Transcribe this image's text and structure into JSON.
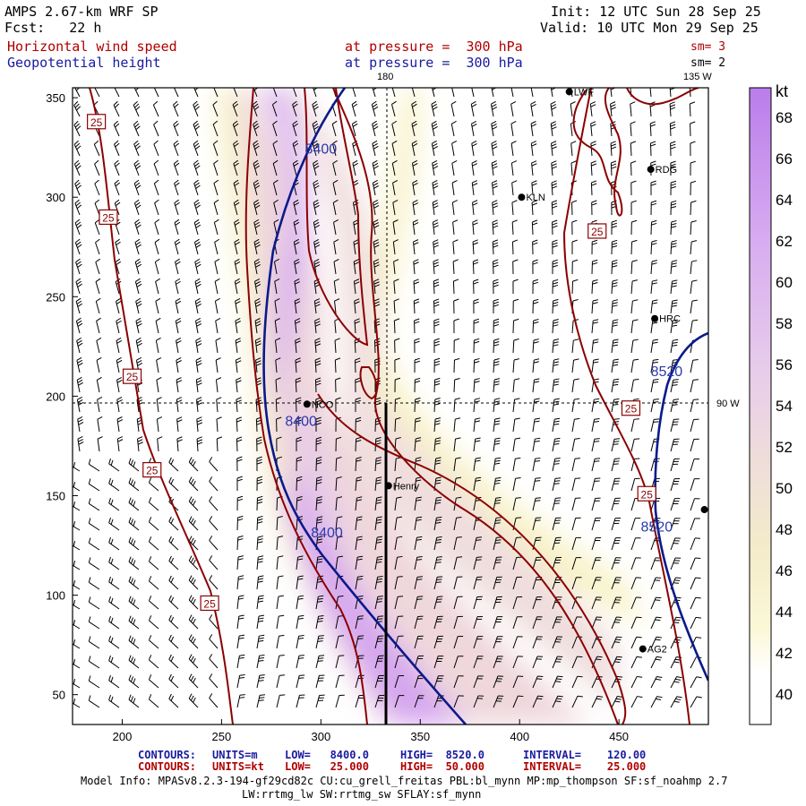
{
  "header": {
    "model": "AMPS 2.67-km WRF SP",
    "forecast": "Fcst:   22 h",
    "init": "Init: 12 UTC Sun 28 Sep 25",
    "valid": "Valid: 10 UTC Mon 29 Sep 25",
    "field1_name": "Horizontal wind speed",
    "field1_level": "at pressure =  300 hPa",
    "field1_sm": "sm= 3",
    "field2_name": "Geopotential height",
    "field2_level": "at pressure =  300 hPa",
    "field2_sm": "sm= 2"
  },
  "map": {
    "meridian_180": "180",
    "meridian_135w": "135 W",
    "meridian_90w": "90 W",
    "x_ticks": [
      200,
      250,
      300,
      350,
      400,
      450
    ],
    "y_ticks": [
      50,
      100,
      150,
      200,
      250,
      300,
      350
    ],
    "x_range": [
      175,
      495
    ],
    "y_range": [
      35,
      355
    ],
    "stations": [
      {
        "id": "LWF",
        "label": "LWF",
        "x": 425,
        "y": 353
      },
      {
        "id": "RDG",
        "label": "RDG",
        "x": 466,
        "y": 314
      },
      {
        "id": "KLN",
        "label": "KLN",
        "x": 401,
        "y": 300
      },
      {
        "id": "HRC",
        "label": "HRC",
        "x": 468,
        "y": 239
      },
      {
        "id": "NCO",
        "label": "NCO",
        "x": 293,
        "y": 196
      },
      {
        "id": "Henry",
        "label": "Henry",
        "x": 334,
        "y": 155
      },
      {
        "id": "AG2",
        "label": "AG2",
        "x": 462,
        "y": 73
      },
      {
        "id": "edge",
        "label": "",
        "x": 493,
        "y": 143
      }
    ],
    "height_contour_labels": [
      {
        "text": "8400",
        "x": 300,
        "y": 322
      },
      {
        "text": "8400",
        "x": 290,
        "y": 185
      },
      {
        "text": "8400",
        "x": 303,
        "y": 129
      },
      {
        "text": "8520",
        "x": 474,
        "y": 210
      },
      {
        "text": "8520",
        "x": 469,
        "y": 132
      }
    ],
    "wind_contour_labels": [
      {
        "text": "25",
        "x": 187,
        "y": 338
      },
      {
        "text": "25",
        "x": 193,
        "y": 290
      },
      {
        "text": "25",
        "x": 205,
        "y": 210
      },
      {
        "text": "25",
        "x": 215,
        "y": 163
      },
      {
        "text": "25",
        "x": 244,
        "y": 96
      },
      {
        "text": "25",
        "x": 439,
        "y": 283
      },
      {
        "text": "25",
        "x": 456,
        "y": 194
      },
      {
        "text": "25",
        "x": 464,
        "y": 151
      }
    ]
  },
  "colorbar": {
    "unit": "kt",
    "labels": [
      "68",
      "66",
      "64",
      "62",
      "60",
      "58",
      "56",
      "54",
      "52",
      "50",
      "48",
      "46",
      "44",
      "42",
      "40"
    ],
    "levels": [
      40,
      42,
      44,
      46,
      48,
      50,
      52,
      54,
      56,
      58,
      60,
      62,
      64,
      66,
      68
    ],
    "colors": [
      "#ffffff",
      "#fcfbe4",
      "#f9f5cf",
      "#f5efc5",
      "#f2e5cf",
      "#efdcda",
      "#ebd2e4",
      "#e8c8ed",
      "#e2bdef",
      "#dcb2f0",
      "#d5a7f0",
      "#ce9cef",
      "#c891ee",
      "#c187ec",
      "#bb7deb"
    ]
  },
  "footer": {
    "line1_label": "CONTOURS:",
    "line1_units": "UNITS=m",
    "line1_low": "LOW=   8400.0",
    "line1_high": "HIGH=  8520.0",
    "line1_interval": "INTERVAL=    120.00",
    "line2_label": "CONTOURS:",
    "line2_units": "UNITS=kt",
    "line2_low": "LOW=   25.000",
    "line2_high": "HIGH=  50.000",
    "line2_interval": "INTERVAL=    25.000",
    "model_info": "Model Info: MPASv8.2.3-194-gf29cd82c CU:cu_grell_freitas PBL:bl_mynn MP:mp_thompson SF:sf_noahmp 2.7",
    "model_info2": "LW:rrtmg_lw SW:rrtmg_sw SFLAY:sf_mynn"
  }
}
